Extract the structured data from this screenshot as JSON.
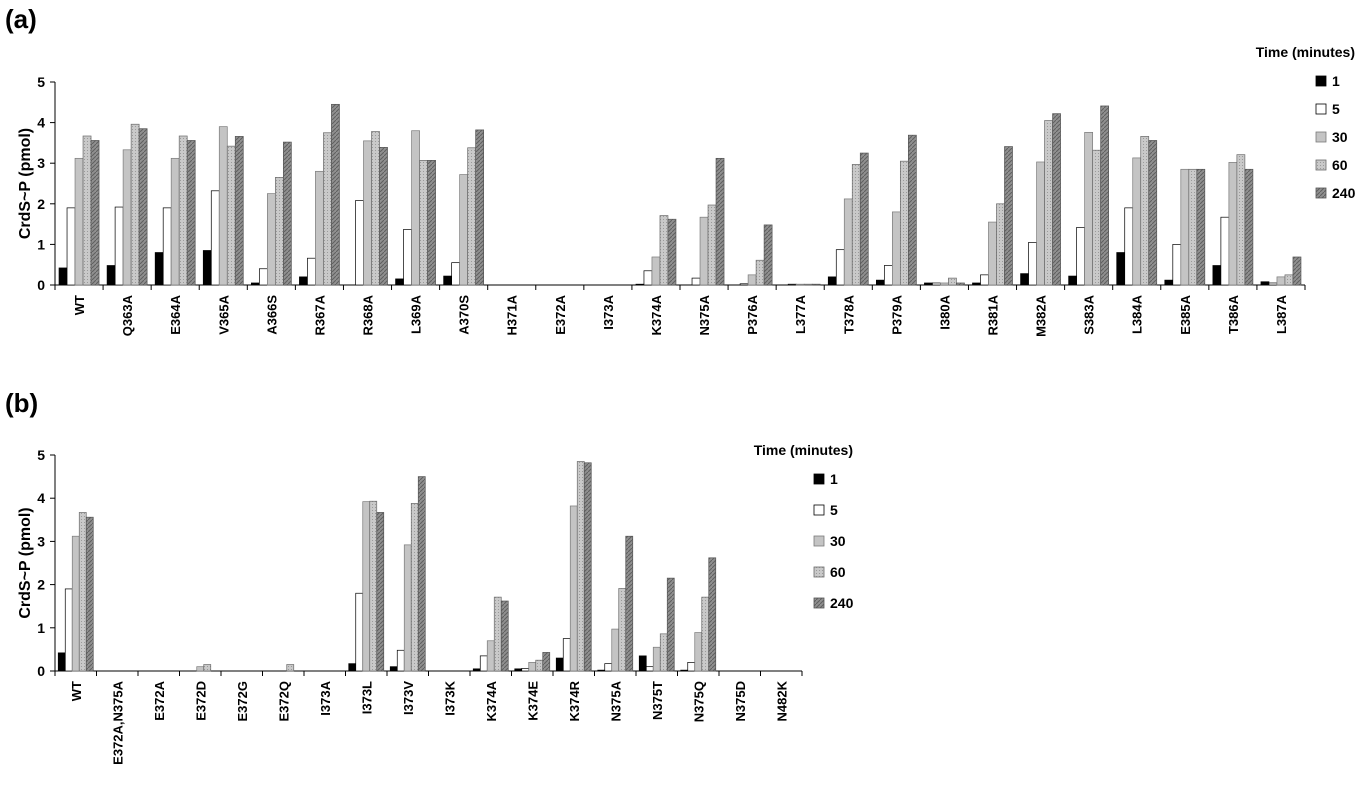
{
  "chart_data": [
    {
      "type": "bar",
      "panel_label": "(a)",
      "ylabel": "CrdS~P (pmol)",
      "ylim": [
        0,
        5
      ],
      "yticks": [
        0,
        1,
        2,
        3,
        4,
        5
      ],
      "legend": {
        "title": "Time (minutes)",
        "placement": "top-right"
      },
      "categories": [
        "WT",
        "Q363A",
        "E364A",
        "V365A",
        "A366S",
        "R367A",
        "R368A",
        "L369A",
        "A370S",
        "H371A",
        "E372A",
        "I373A",
        "K374A",
        "N375A",
        "P376A",
        "L377A",
        "T378A",
        "P379A",
        "I380A",
        "R381A",
        "M382A",
        "S383A",
        "L384A",
        "E385A",
        "T386A",
        "L387A"
      ],
      "series": [
        {
          "name": "1",
          "fill": "#000000",
          "values": [
            0.42,
            0.48,
            0.8,
            0.85,
            0.05,
            0.2,
            0,
            0.15,
            0.22,
            0,
            0,
            0,
            0.02,
            0,
            0,
            0,
            0.2,
            0.12,
            0.05,
            0.05,
            0.28,
            0.22,
            0.8,
            0.12,
            0.48,
            0.08
          ]
        },
        {
          "name": "5",
          "fill": "#ffffff",
          "values": [
            1.9,
            1.92,
            1.9,
            2.32,
            0.4,
            0.66,
            2.08,
            1.37,
            0.55,
            0,
            0,
            0,
            0.35,
            0.17,
            0.03,
            0.02,
            0.87,
            0.48,
            0.05,
            0.25,
            1.05,
            1.42,
            1.9,
            1.0,
            1.67,
            0.05
          ]
        },
        {
          "name": "30",
          "fill": "#c4c4c4",
          "values": [
            3.12,
            3.33,
            3.12,
            3.9,
            2.25,
            2.8,
            3.55,
            3.8,
            2.72,
            0,
            0,
            0,
            0.69,
            1.67,
            0.25,
            0.02,
            2.12,
            1.8,
            0.05,
            1.55,
            3.03,
            3.76,
            3.13,
            2.85,
            3.02,
            0.2
          ]
        },
        {
          "name": "60",
          "fill": "#a8a8a8",
          "values": [
            3.67,
            3.96,
            3.67,
            3.42,
            2.65,
            3.75,
            3.78,
            3.07,
            3.38,
            0,
            0,
            0,
            1.71,
            1.97,
            0.61,
            0.02,
            2.97,
            3.05,
            0.17,
            2.0,
            4.05,
            3.32,
            3.66,
            2.85,
            3.21,
            0.25
          ]
        },
        {
          "name": "240",
          "fill": "#8c8c8c",
          "values": [
            3.56,
            3.85,
            3.56,
            3.66,
            3.52,
            4.45,
            3.39,
            3.07,
            3.82,
            0,
            0,
            0,
            1.62,
            3.12,
            1.48,
            0.02,
            3.25,
            3.69,
            0.05,
            3.41,
            4.22,
            4.41,
            3.56,
            2.85,
            2.85,
            0.69
          ]
        }
      ]
    },
    {
      "type": "bar",
      "panel_label": "(b)",
      "ylabel": "CrdS~P (pmol)",
      "ylim": [
        0,
        5
      ],
      "yticks": [
        0,
        1,
        2,
        3,
        4,
        5
      ],
      "legend": {
        "title": "Time (minutes)",
        "placement": "right"
      },
      "categories": [
        "WT",
        "E372A,N375A",
        "E372A",
        "E372D",
        "E372G",
        "E372Q",
        "I373A",
        "I373L",
        "I373V",
        "I373K",
        "K374A",
        "K374E",
        "K374R",
        "N375A",
        "N375T",
        "N375Q",
        "N375D",
        "N482K"
      ],
      "series": [
        {
          "name": "1",
          "fill": "#000000",
          "values": [
            0.42,
            0,
            0,
            0,
            0,
            0,
            0,
            0.17,
            0.1,
            0,
            0.05,
            0.05,
            0.3,
            0.02,
            0.35,
            0.02,
            0,
            0
          ]
        },
        {
          "name": "5",
          "fill": "#ffffff",
          "values": [
            1.9,
            0,
            0,
            0,
            0,
            0,
            0,
            1.8,
            0.48,
            0,
            0.35,
            0.06,
            0.75,
            0.17,
            0.1,
            0.2,
            0,
            0
          ]
        },
        {
          "name": "30",
          "fill": "#c4c4c4",
          "values": [
            3.12,
            0,
            0,
            0.1,
            0,
            0,
            0,
            3.92,
            2.92,
            0,
            0.7,
            0.2,
            3.82,
            0.97,
            0.55,
            0.89,
            0,
            0
          ]
        },
        {
          "name": "60",
          "fill": "#a8a8a8",
          "values": [
            3.67,
            0,
            0,
            0.15,
            0,
            0.15,
            0,
            3.93,
            3.88,
            0,
            1.71,
            0.25,
            4.85,
            1.91,
            0.86,
            1.71,
            0,
            0
          ]
        },
        {
          "name": "240",
          "fill": "#8c8c8c",
          "values": [
            3.56,
            0,
            0,
            0,
            0,
            0,
            0,
            3.67,
            4.5,
            0,
            1.62,
            0.43,
            4.82,
            3.12,
            2.15,
            2.62,
            0,
            0
          ]
        }
      ]
    }
  ]
}
